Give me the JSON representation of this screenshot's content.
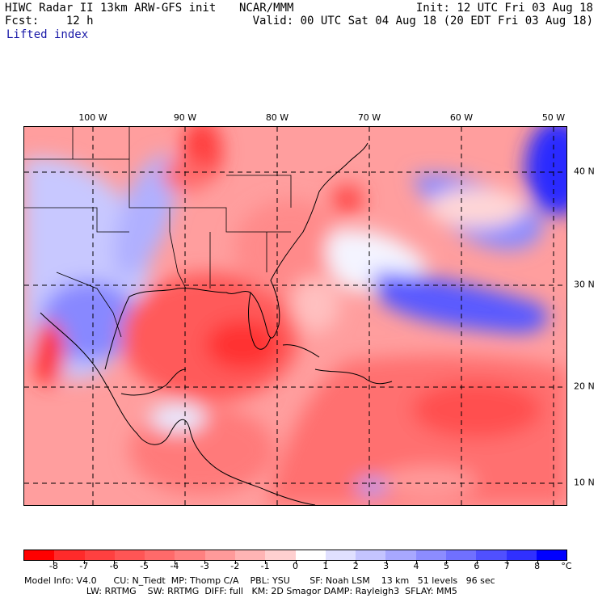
{
  "header": {
    "title": "HIWC Radar II 13km ARW-GFS init",
    "source": "NCAR/MMM",
    "init": "Init: 12 UTC Fri 03 Aug 18",
    "fcst": "Fcst:    12 h",
    "valid": "Valid: 00 UTC Sat 04 Aug 18 (20 EDT Fri 03 Aug 18)",
    "field": "Lifted index"
  },
  "map": {
    "lon_labels": [
      "100 W",
      "90 W",
      "80 W",
      "70 W",
      "60 W",
      "50 W"
    ],
    "lat_labels": [
      "40 N",
      "30 N",
      "20 N",
      "10 N"
    ]
  },
  "colorbar": {
    "unit": "°C",
    "ticks": [
      "-8",
      "-7",
      "-6",
      "-5",
      "-4",
      "-3",
      "-2",
      "-1",
      "0",
      "1",
      "2",
      "3",
      "4",
      "5",
      "6",
      "7",
      "8"
    ],
    "colors": [
      "#ff0000",
      "#ff2a2a",
      "#ff4040",
      "#ff5555",
      "#ff6a6a",
      "#ff8080",
      "#ff9a9a",
      "#ffb4b4",
      "#ffd0d0",
      "#ffffff",
      "#e0e0ff",
      "#c4c4ff",
      "#a8a8ff",
      "#8c8cff",
      "#7070ff",
      "#5050ff",
      "#3030ff",
      "#0000ff"
    ]
  },
  "footer": {
    "line1": "Model Info: V4.0      CU: N_Tiedt  MP: Thomp C/A    PBL: YSU       SF: Noah LSM    13 km   51 levels   96 sec",
    "line2": "                      LW: RRTMG    SW: RRTMG  DIFF: full   KM: 2D Smagor DAMP: Rayleigh3  SFLAY: MM5"
  }
}
